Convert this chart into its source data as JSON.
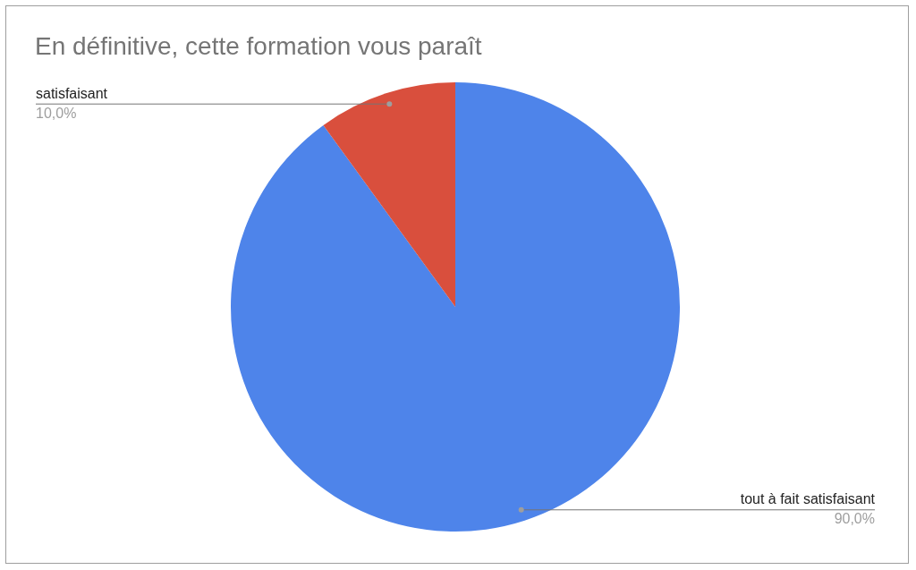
{
  "chart_data": {
    "type": "pie",
    "title": "En définitive, cette formation vous paraît",
    "categories": [
      "tout à fait satisfaisant",
      "satisfaisant"
    ],
    "values": [
      90,
      10
    ],
    "colors": [
      "#4e84ea",
      "#d94f3d"
    ],
    "value_labels": [
      "90,0%",
      "10,0%"
    ],
    "legend": false
  }
}
